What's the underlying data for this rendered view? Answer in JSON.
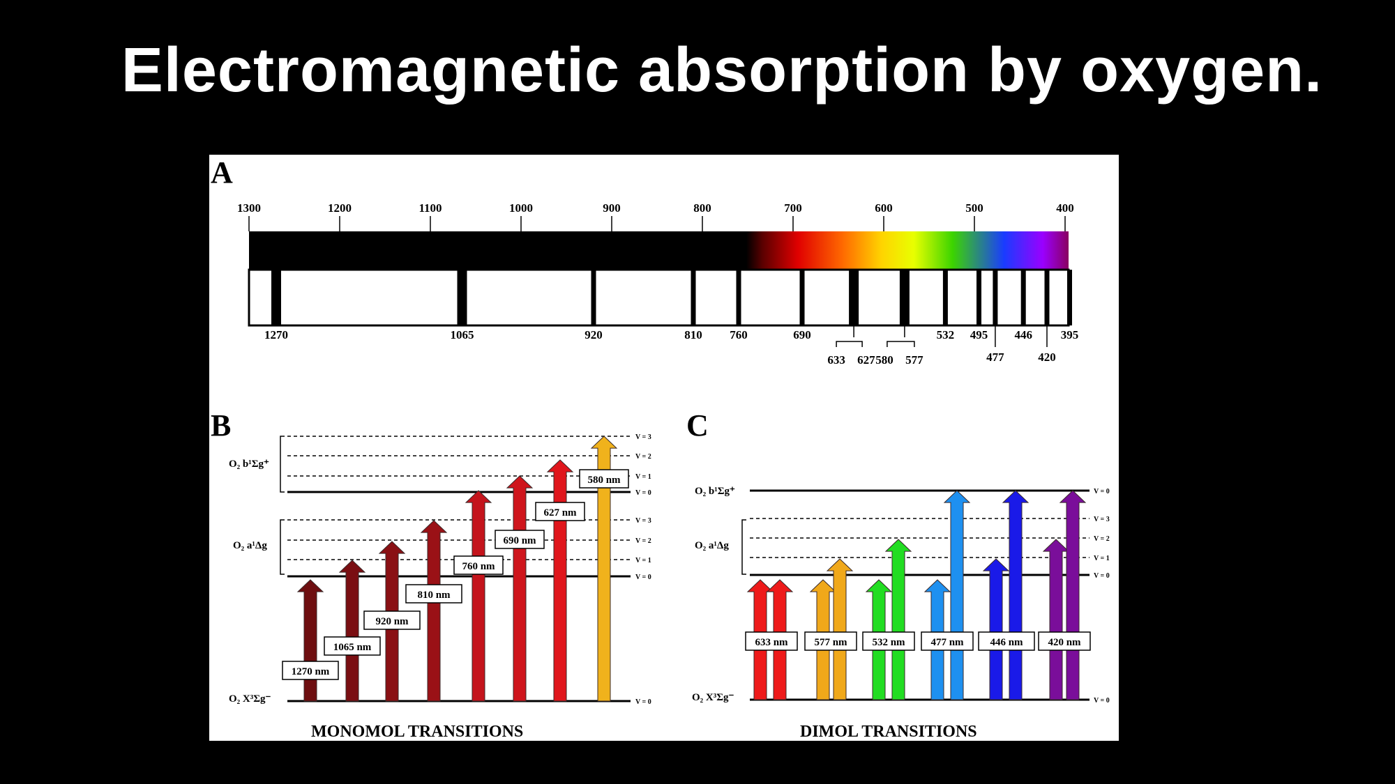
{
  "title": "Electromagnetic absorption by oxygen.",
  "panel_a": {
    "label": "A",
    "top_ticks": [
      "1300",
      "1200",
      "1100",
      "1000",
      "900",
      "800",
      "700",
      "600",
      "500",
      "400"
    ],
    "bands": [
      {
        "wavelength": 1270,
        "label": "1270",
        "width": "wide"
      },
      {
        "wavelength": 1065,
        "label": "1065",
        "width": "wide"
      },
      {
        "wavelength": 920,
        "label": "920",
        "width": "thin"
      },
      {
        "wavelength": 810,
        "label": "810",
        "width": "thin"
      },
      {
        "wavelength": 760,
        "label": "760",
        "width": "thin"
      },
      {
        "wavelength": 690,
        "label": "690",
        "width": "thin"
      },
      {
        "wavelength": 633,
        "label": "633",
        "width": "wide"
      },
      {
        "wavelength": 627,
        "label": "627",
        "width": "none"
      },
      {
        "wavelength": 580,
        "label": "580",
        "width": "none"
      },
      {
        "wavelength": 577,
        "label": "577",
        "width": "wide"
      },
      {
        "wavelength": 532,
        "label": "532",
        "width": "thin"
      },
      {
        "wavelength": 495,
        "label": "495",
        "width": "thin"
      },
      {
        "wavelength": 477,
        "label": "477",
        "width": "thin"
      },
      {
        "wavelength": 446,
        "label": "446",
        "width": "thin"
      },
      {
        "wavelength": 420,
        "label": "420",
        "width": "thin"
      },
      {
        "wavelength": 395,
        "label": "395",
        "width": "thin"
      }
    ]
  },
  "panel_b": {
    "label": "B",
    "caption": "MONOMOL TRANSITIONS",
    "state_b": "O₂ b¹Σg⁺",
    "state_a": "O₂ a¹Δg",
    "state_x": "O₂ X³Σg⁻",
    "levels_b": [
      "V = 3",
      "V = 2",
      "V = 1",
      "V = 0"
    ],
    "levels_a": [
      "V = 3",
      "V = 2",
      "V = 1",
      "V = 0"
    ],
    "level_x": "V = 0",
    "transitions": [
      "1270 nm",
      "1065 nm",
      "920 nm",
      "810 nm",
      "760 nm",
      "690 nm",
      "627 nm",
      "580 nm"
    ]
  },
  "panel_c": {
    "label": "C",
    "caption": "DIMOL TRANSITIONS",
    "state_b": "O₂ b¹Σg⁺",
    "state_a": "O₂ a¹Δg",
    "state_x": "O₂ X³Σg⁻",
    "level_b": "V = 0",
    "levels_a": [
      "V = 3",
      "V = 2",
      "V = 1",
      "V = 0"
    ],
    "level_x": "V = 0",
    "transitions": [
      "633 nm",
      "577 nm",
      "532 nm",
      "477 nm",
      "446 nm",
      "420 nm"
    ]
  },
  "colors": {
    "background": "#000000",
    "figure_bg": "#ffffff",
    "monomol_arrows": [
      "#6e0e10",
      "#7a0e12",
      "#8a1014",
      "#9a1116",
      "#c4141c",
      "#cf151c",
      "#e0161c",
      "#f0b21c"
    ],
    "dimol_arrows": [
      "#ee1a1a",
      "#f0a81a",
      "#22dd22",
      "#1e90f0",
      "#1a1ae8",
      "#7a0e9a"
    ]
  }
}
